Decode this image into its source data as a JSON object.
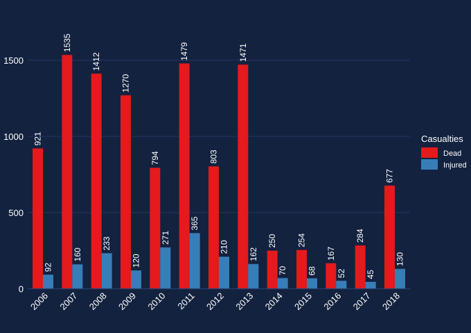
{
  "chart_data": {
    "type": "bar",
    "categories": [
      "2006",
      "2007",
      "2008",
      "2009",
      "2010",
      "2011",
      "2012",
      "2013",
      "2014",
      "2015",
      "2016",
      "2017",
      "2018"
    ],
    "series": [
      {
        "name": "Dead",
        "color": "#e41a1c",
        "values": [
          921,
          1535,
          1412,
          1270,
          794,
          1479,
          803,
          1471,
          250,
          254,
          167,
          284,
          677
        ]
      },
      {
        "name": "Injured",
        "color": "#377eb8",
        "values": [
          92,
          160,
          233,
          120,
          271,
          365,
          210,
          162,
          70,
          68,
          52,
          45,
          130
        ]
      }
    ],
    "title": "",
    "xlabel": "",
    "ylabel": "",
    "ylim": [
      0,
      1800
    ],
    "yticks": [
      0,
      500,
      1000,
      1500
    ],
    "grid": true,
    "legend": {
      "title": "Casualties",
      "position": "right"
    },
    "colors": {
      "background": "#13223f",
      "grid": "#22385f",
      "text": "#ffffff"
    }
  }
}
